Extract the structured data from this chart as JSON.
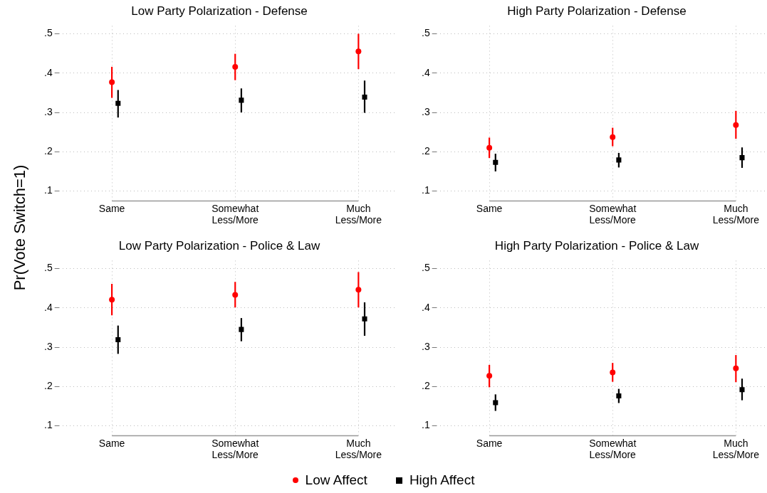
{
  "chart_data": [
    {
      "type": "scatter",
      "title": "Low Party Polarization - Defense",
      "ylabel": "Pr(Vote Switch=1)",
      "categories": [
        "Same",
        "Somewhat Less/More",
        "Much Less/More"
      ],
      "ylim": [
        0.075,
        0.52
      ],
      "yticks": [
        {
          "value": 0.1,
          "label": ".1"
        },
        {
          "value": 0.2,
          "label": ".2"
        },
        {
          "value": 0.3,
          "label": ".3"
        },
        {
          "value": 0.4,
          "label": ".4"
        },
        {
          "value": 0.5,
          "label": ".5"
        }
      ],
      "grid": true,
      "legend": "bottom",
      "series": [
        {
          "name": "Low Affect",
          "color": "#ff0000",
          "marker": "circle",
          "values": [
            0.377,
            0.416,
            0.455
          ],
          "errors": [
            [
              0.337,
              0.416
            ],
            [
              0.382,
              0.449
            ],
            [
              0.41,
              0.5
            ]
          ]
        },
        {
          "name": "High Affect",
          "color": "#000000",
          "marker": "square",
          "values": [
            0.323,
            0.331,
            0.339
          ],
          "errors": [
            [
              0.287,
              0.357
            ],
            [
              0.3,
              0.361
            ],
            [
              0.299,
              0.381
            ]
          ]
        }
      ]
    },
    {
      "type": "scatter",
      "title": "High Party Polarization - Defense",
      "categories": [
        "Same",
        "Somewhat Less/More",
        "Much Less/More"
      ],
      "ylim": [
        0.075,
        0.52
      ],
      "yticks": [
        {
          "value": 0.1,
          "label": ".1"
        },
        {
          "value": 0.2,
          "label": ".2"
        },
        {
          "value": 0.3,
          "label": ".3"
        },
        {
          "value": 0.4,
          "label": ".4"
        },
        {
          "value": 0.5,
          "label": ".5"
        }
      ],
      "grid": true,
      "series": [
        {
          "color": "#ff0000",
          "marker": "circle",
          "values": [
            0.21,
            0.237,
            0.268
          ],
          "errors": [
            [
              0.184,
              0.236
            ],
            [
              0.214,
              0.261
            ],
            [
              0.233,
              0.304
            ]
          ]
        },
        {
          "color": "#000000",
          "marker": "square",
          "values": [
            0.173,
            0.179,
            0.185
          ],
          "errors": [
            [
              0.15,
              0.195
            ],
            [
              0.16,
              0.197
            ],
            [
              0.159,
              0.211
            ]
          ]
        }
      ]
    },
    {
      "type": "scatter",
      "title": "Low Party Polarization - Police & Law",
      "categories": [
        "Same",
        "Somewhat Less/More",
        "Much Less/More"
      ],
      "ylim": [
        0.075,
        0.52
      ],
      "yticks": [
        {
          "value": 0.1,
          "label": ".1"
        },
        {
          "value": 0.2,
          "label": ".2"
        },
        {
          "value": 0.3,
          "label": ".3"
        },
        {
          "value": 0.4,
          "label": ".4"
        },
        {
          "value": 0.5,
          "label": ".5"
        }
      ],
      "grid": true,
      "series": [
        {
          "color": "#ff0000",
          "marker": "circle",
          "values": [
            0.421,
            0.433,
            0.446
          ],
          "errors": [
            [
              0.381,
              0.461
            ],
            [
              0.401,
              0.466
            ],
            [
              0.401,
              0.491
            ]
          ]
        },
        {
          "color": "#000000",
          "marker": "square",
          "values": [
            0.319,
            0.345,
            0.372
          ],
          "errors": [
            [
              0.283,
              0.355
            ],
            [
              0.315,
              0.374
            ],
            [
              0.329,
              0.414
            ]
          ]
        }
      ]
    },
    {
      "type": "scatter",
      "title": "High Party Polarization - Police & Law",
      "categories": [
        "Same",
        "Somewhat Less/More",
        "Much Less/More"
      ],
      "ylim": [
        0.075,
        0.52
      ],
      "yticks": [
        {
          "value": 0.1,
          "label": ".1"
        },
        {
          "value": 0.2,
          "label": ".2"
        },
        {
          "value": 0.3,
          "label": ".3"
        },
        {
          "value": 0.4,
          "label": ".4"
        },
        {
          "value": 0.5,
          "label": ".5"
        }
      ],
      "grid": true,
      "series": [
        {
          "color": "#ff0000",
          "marker": "circle",
          "values": [
            0.227,
            0.236,
            0.246
          ],
          "errors": [
            [
              0.198,
              0.255
            ],
            [
              0.212,
              0.26
            ],
            [
              0.211,
              0.28
            ]
          ]
        },
        {
          "color": "#000000",
          "marker": "square",
          "values": [
            0.159,
            0.176,
            0.192
          ],
          "errors": [
            [
              0.138,
              0.18
            ],
            [
              0.158,
              0.194
            ],
            [
              0.165,
              0.22
            ]
          ]
        }
      ]
    }
  ]
}
